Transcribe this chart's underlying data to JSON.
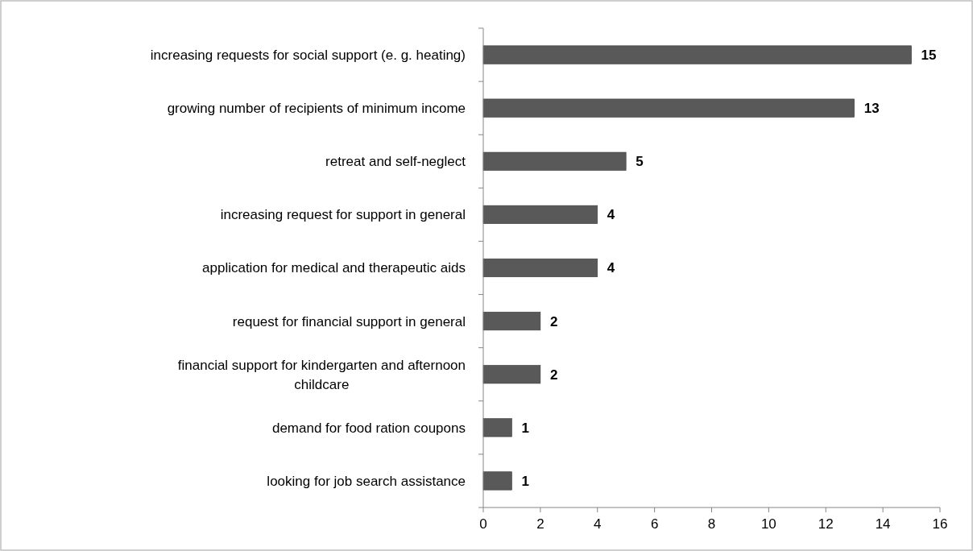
{
  "chart_data": {
    "type": "bar",
    "orientation": "horizontal",
    "categories": [
      "increasing requests for social support (e. g. heating)",
      "growing number of recipients of minimum income",
      "retreat and self-neglect",
      "increasing request for support in general",
      "application for medical and therapeutic aids",
      "request for financial support in general",
      "financial support for kindergarten and afternoon childcare",
      "demand for food ration coupons",
      "looking for job search assistance"
    ],
    "values": [
      15,
      13,
      5,
      4,
      4,
      2,
      2,
      1,
      1
    ],
    "color": "#595959",
    "xlim": [
      0,
      16
    ],
    "xticks": [
      0,
      2,
      4,
      6,
      8,
      10,
      12,
      14,
      16
    ],
    "data_labels": true
  }
}
